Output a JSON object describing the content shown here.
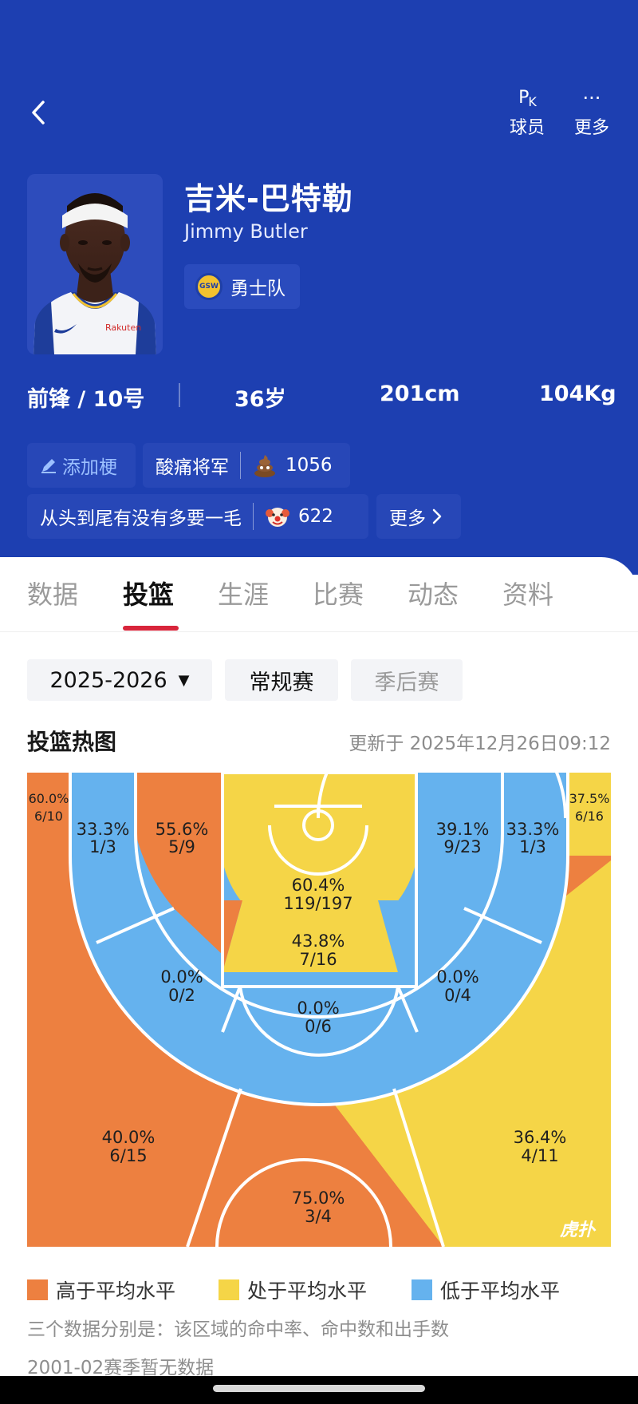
{
  "header": {
    "actions": [
      {
        "icon": "pk-icon",
        "label": "球员"
      },
      {
        "icon": "more-dots-icon",
        "label": "更多"
      }
    ]
  },
  "player": {
    "name_cn": "吉米-巴特勒",
    "name_en": "Jimmy Butler",
    "team": "勇士队",
    "team_logo_text": "GSW",
    "jersey_sponsor": "Rakuten",
    "position_number": "前锋 / 10号",
    "age": "36岁",
    "height": "201cm",
    "weight": "104Kg"
  },
  "tags": {
    "add_label": "添加梗",
    "tag1": {
      "text": "酸痛将军",
      "count": "1056",
      "emoji": "poop-emoji"
    },
    "tag2": {
      "text": "从头到尾有没有多要一毛",
      "count": "622",
      "emoji": "clown-emoji"
    },
    "more_label": "更多"
  },
  "tabs": [
    {
      "label": "数据",
      "active": false
    },
    {
      "label": "投篮",
      "active": true
    },
    {
      "label": "生涯",
      "active": false
    },
    {
      "label": "比赛",
      "active": false
    },
    {
      "label": "动态",
      "active": false
    },
    {
      "label": "资料",
      "active": false
    }
  ],
  "filters": {
    "season": "2025-2026",
    "regular": "常规赛",
    "playoffs": "季后赛"
  },
  "heatmap": {
    "title": "投篮热图",
    "updated": "更新于 2025年12月26日09:12",
    "colors": {
      "above": "#ed8040",
      "average": "#f5d547",
      "below": "#65b2ee"
    },
    "zones": {
      "left_corner_three": {
        "pct": "60.0%",
        "made_att": "6/10",
        "level": "above"
      },
      "right_corner_three": {
        "pct": "37.5%",
        "made_att": "6/16",
        "level": "average"
      },
      "left_wing_deep": {
        "pct": "33.3%",
        "made_att": "1/3",
        "level": "below"
      },
      "left_elbow_mid": {
        "pct": "55.6%",
        "made_att": "5/9",
        "level": "above"
      },
      "restricted_area": {
        "pct": "60.4%",
        "made_att": "119/197",
        "level": "average"
      },
      "paint": {
        "pct": "43.8%",
        "made_att": "7/16",
        "level": "average"
      },
      "right_elbow_mid": {
        "pct": "39.1%",
        "made_att": "9/23",
        "level": "below"
      },
      "right_wing_deep": {
        "pct": "33.3%",
        "made_att": "1/3",
        "level": "below"
      },
      "left_wing_mid": {
        "pct": "0.0%",
        "made_att": "0/2",
        "level": "below"
      },
      "top_key_mid": {
        "pct": "0.0%",
        "made_att": "0/6",
        "level": "below"
      },
      "right_wing_mid": {
        "pct": "0.0%",
        "made_att": "0/4",
        "level": "below"
      },
      "left_three": {
        "pct": "40.0%",
        "made_att": "6/15",
        "level": "above"
      },
      "right_three": {
        "pct": "36.4%",
        "made_att": "4/11",
        "level": "average"
      },
      "top_three": {
        "pct": "75.0%",
        "made_att": "3/4",
        "level": "above"
      }
    },
    "watermark": "虎扑"
  },
  "legend": [
    {
      "label": "高于平均水平",
      "color": "#ed8040"
    },
    {
      "label": "处于平均水平",
      "color": "#f5d547"
    },
    {
      "label": "低于平均水平",
      "color": "#65b2ee"
    }
  ],
  "notes": {
    "explain": "三个数据分别是：该区域的命中率、命中数和出手数",
    "no_data": "2001-02赛季暂无数据"
  }
}
